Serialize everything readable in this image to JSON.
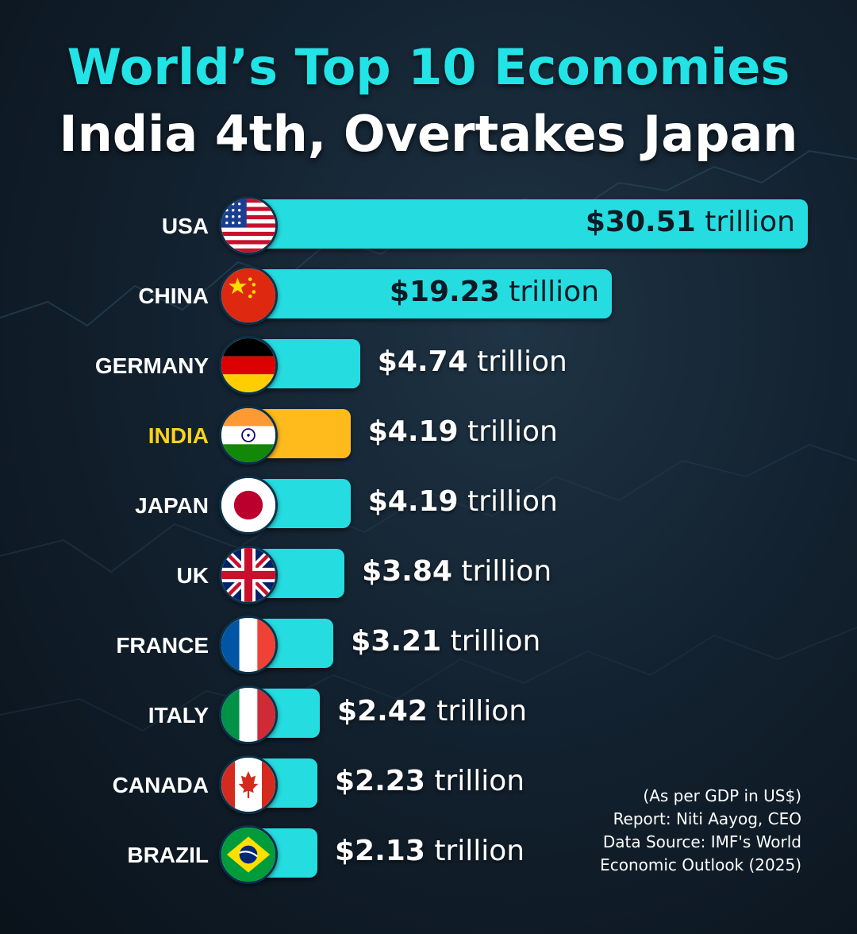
{
  "title_line1": "World’s Top 10 Economies",
  "title_line2": "India 4th, Overtakes Japan",
  "colors": {
    "accent": "#22e3e6",
    "highlight": "#ffbb1c",
    "highlight_text": "#ffd21f",
    "background": "#132230"
  },
  "chart_data": {
    "type": "bar",
    "orientation": "horizontal",
    "categories": [
      "USA",
      "CHINA",
      "GERMANY",
      "INDIA",
      "JAPAN",
      "UK",
      "FRANCE",
      "ITALY",
      "CANADA",
      "BRAZIL"
    ],
    "values": [
      30.51,
      19.23,
      4.74,
      4.19,
      4.19,
      3.84,
      3.21,
      2.42,
      2.23,
      2.13
    ],
    "value_labels": [
      "$30.51",
      "$19.23",
      "$4.74",
      "$4.19",
      "$4.19",
      "$3.84",
      "$3.21",
      "$2.42",
      "$2.23",
      "$2.13"
    ],
    "unit_label": "trillion",
    "highlight": "INDIA",
    "flag_icons": [
      "usa-flag-icon",
      "china-flag-icon",
      "germany-flag-icon",
      "india-flag-icon",
      "japan-flag-icon",
      "uk-flag-icon",
      "france-flag-icon",
      "italy-flag-icon",
      "canada-flag-icon",
      "brazil-flag-icon"
    ]
  },
  "notes": {
    "line1": "(As per GDP in US$)",
    "line2": "Report: Niti Aayog, CEO",
    "line3": "Data Source: IMF's World",
    "line4": "Economic Outlook (2025)"
  }
}
